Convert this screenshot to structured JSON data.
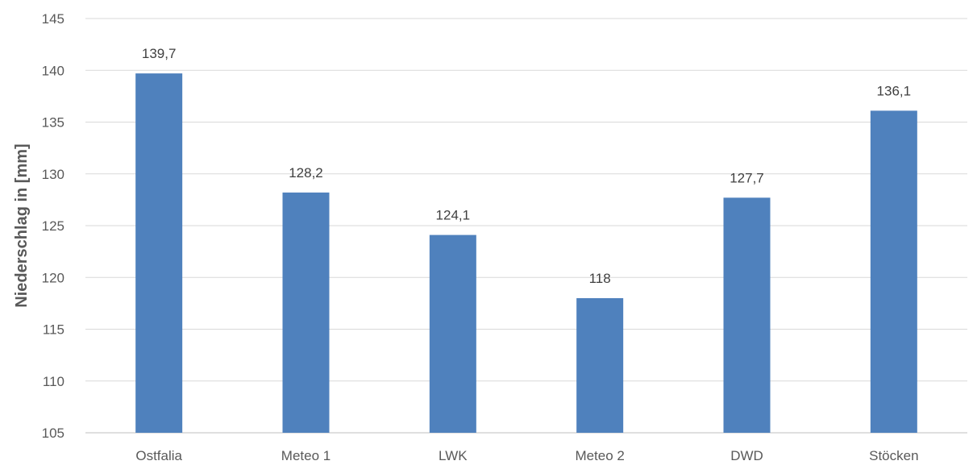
{
  "chart_data": {
    "type": "bar",
    "title": "",
    "xlabel": "",
    "ylabel": "Niederschlag in [mm]",
    "categories": [
      "Ostfalia",
      "Meteo 1",
      "LWK",
      "Meteo 2",
      "DWD",
      "Stöcken"
    ],
    "values": [
      139.7,
      128.2,
      124.1,
      118,
      127.7,
      136.1
    ],
    "data_labels": [
      "139,7",
      "128,2",
      "124,1",
      "118",
      "127,7",
      "136,1"
    ],
    "ylim": [
      105,
      145
    ],
    "yticks": [
      105,
      110,
      115,
      120,
      125,
      130,
      135,
      140,
      145
    ],
    "grid": true,
    "legend": "none",
    "colors": {
      "bar": "#4F81BD",
      "grid": "#D9D9D9",
      "text": "#595959"
    }
  }
}
